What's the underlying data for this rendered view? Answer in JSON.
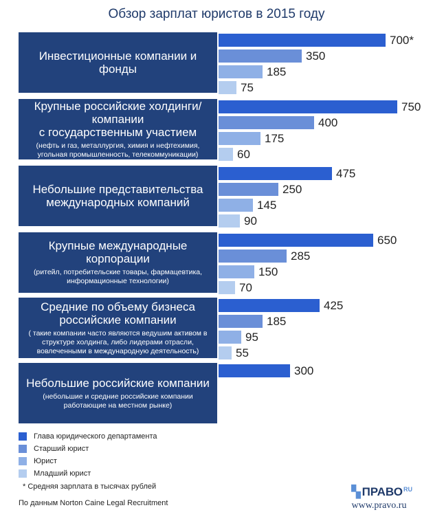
{
  "title": "Обзор зарплат юристов в 2015 году",
  "colors": {
    "category_box": "#22427c",
    "series": [
      "#2b5fd0",
      "#6a8fd8",
      "#8fb0e6",
      "#b4cdef"
    ]
  },
  "chart_data": {
    "type": "bar",
    "orientation": "horizontal",
    "title": "Обзор зарплат юристов в 2015 году",
    "unit_note": "Средняя зарплата в тысячах рублей",
    "categories": [
      {
        "name": "Инвестиционные компании и фонды",
        "note": ""
      },
      {
        "name": "Крупные российские холдинги/компании\nс государственным участием",
        "note": "(нефть и газ, металлургия, химия и нефтехимия,\nугольная промышленность, телекоммуникации)"
      },
      {
        "name": "Небольшие представительства\nмеждународных компаний",
        "note": ""
      },
      {
        "name": "Крупные международные корпорации",
        "note": "(ритейл, потребительские товары, фармацевтика,\nинформационные технологии)"
      },
      {
        "name": "Средние по объему бизнеса\nроссийские компании",
        "note": "( такие компании часто являются ведушим активом в\nструктуре холдинга, либо лидерами отрасли,\nвовлеченными в международную деятельность)"
      },
      {
        "name": "Небольшие российские компании",
        "note": "(небольшие и средние российские компании\nработающие на местном рынке)"
      }
    ],
    "series": [
      {
        "name": "Глава юридического департамента",
        "values": [
          700,
          750,
          475,
          650,
          425,
          300
        ]
      },
      {
        "name": "Старший юрист",
        "values": [
          350,
          400,
          250,
          285,
          185,
          null
        ]
      },
      {
        "name": "Юрист",
        "values": [
          185,
          175,
          145,
          150,
          95,
          null
        ]
      },
      {
        "name": "Младший юрист",
        "values": [
          75,
          60,
          90,
          70,
          55,
          null
        ]
      }
    ],
    "value_labels": [
      [
        "700*",
        "350",
        "185",
        "75"
      ],
      [
        "750",
        "400",
        "175",
        "60"
      ],
      [
        "475",
        "250",
        "145",
        "90"
      ],
      [
        "650",
        "285",
        "150",
        "70"
      ],
      [
        "425",
        "185",
        "95",
        "55"
      ],
      [
        "300",
        "",
        "",
        ""
      ]
    ],
    "xlim": [
      0,
      800
    ],
    "legend_position": "bottom-left"
  },
  "legend_footnote": "*   Средняя зарплата в тысячах рублей",
  "source": "По данным Norton Caine Legal Recruitment",
  "logo": {
    "name": "ПРАВО",
    "suffix": "RU",
    "url": "www.pravo.ru"
  }
}
